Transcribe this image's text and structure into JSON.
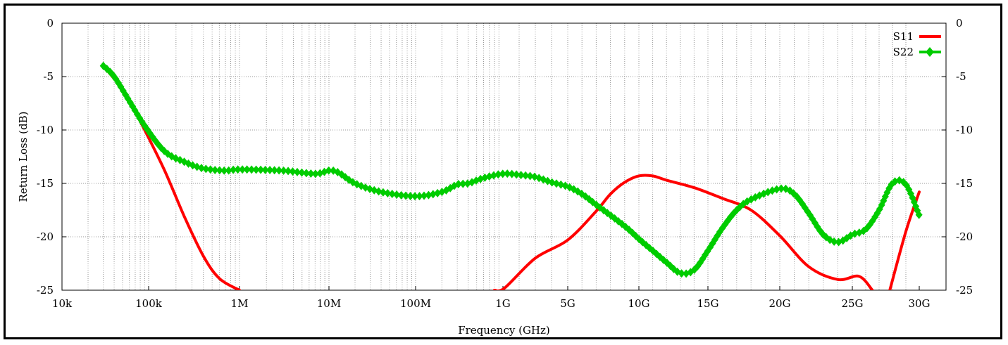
{
  "chart_data": {
    "type": "line",
    "xlabel": "Frequency (GHz)",
    "ylabel": "Return Loss (dB)",
    "ylim": [
      -25,
      0
    ],
    "grid": true,
    "legend_position": "top-right",
    "x_ticks": [
      "10k",
      "100k",
      "1M",
      "10M",
      "100M",
      "1G",
      "5G",
      "10G",
      "15G",
      "20G",
      "25G",
      "30G"
    ],
    "y_ticks": [
      "0",
      "-5",
      "-10",
      "-15",
      "-20",
      "-25"
    ],
    "x_axis_note": "log scale from 10k to 1G, then linear from 1G to 30G",
    "series": [
      {
        "name": "S11",
        "color": "#ff0000",
        "marker": "none",
        "segments": [
          {
            "x": [
              "30k",
              "50k",
              "70k",
              "90k",
              "150k",
              "250k",
              "400k",
              "600k",
              "1M"
            ],
            "y": [
              -4.0,
              -6.2,
              -8.3,
              -10.0,
              -13.8,
              -18.2,
              -21.8,
              -23.9,
              -25.0
            ]
          },
          {
            "x": [
              "0.8G",
              "1.1G",
              "3G",
              "5G",
              "7G",
              "8G",
              "9G",
              "10G",
              "11G",
              "12G",
              "14G",
              "16G",
              "18G",
              "20G",
              "22G",
              "24G",
              "25.5G",
              "26.5G"
            ],
            "y": [
              -25.0,
              -24.8,
              -22.0,
              -20.3,
              -17.6,
              -16.0,
              -14.9,
              -14.3,
              -14.3,
              -14.7,
              -15.4,
              -16.4,
              -17.5,
              -19.9,
              -22.8,
              -24.0,
              -23.7,
              -25.0
            ]
          },
          {
            "x": [
              "27.8G",
              "29G",
              "30G"
            ],
            "y": [
              -25.0,
              -19.5,
              -15.8
            ]
          }
        ]
      },
      {
        "name": "S22",
        "color": "#00cc00",
        "marker": "diamond",
        "x": [
          "30k",
          "40k",
          "60k",
          "90k",
          "150k",
          "250k",
          "400k",
          "700k",
          "1M",
          "3M",
          "7M",
          "10M",
          "13M",
          "20M",
          "40M",
          "100M",
          "200M",
          "300M",
          "400M",
          "600M",
          "1G",
          "2G",
          "3G",
          "4G",
          "5G",
          "6G",
          "7G",
          "9G",
          "10G",
          "11G",
          "12G",
          "13G",
          "14G",
          "15G",
          "16G",
          "17G",
          "18G",
          "20G",
          "21G",
          "22G",
          "23G",
          "24G",
          "25G",
          "26G",
          "27G",
          "28G",
          "29G",
          "30G"
        ],
        "y": [
          -4.0,
          -5.0,
          -7.3,
          -9.6,
          -12.0,
          -13.0,
          -13.6,
          -13.8,
          -13.7,
          -13.8,
          -14.1,
          -13.8,
          -14.0,
          -15.0,
          -15.8,
          -16.2,
          -15.8,
          -15.1,
          -15.0,
          -14.5,
          -14.1,
          -14.2,
          -14.4,
          -14.9,
          -15.3,
          -16.0,
          -17.0,
          -19.0,
          -20.2,
          -21.3,
          -22.4,
          -23.4,
          -23.1,
          -21.3,
          -19.2,
          -17.5,
          -16.5,
          -15.5,
          -16.0,
          -17.8,
          -19.8,
          -20.5,
          -19.8,
          -19.3,
          -17.5,
          -15.0,
          -15.1,
          -18.0
        ]
      }
    ]
  }
}
